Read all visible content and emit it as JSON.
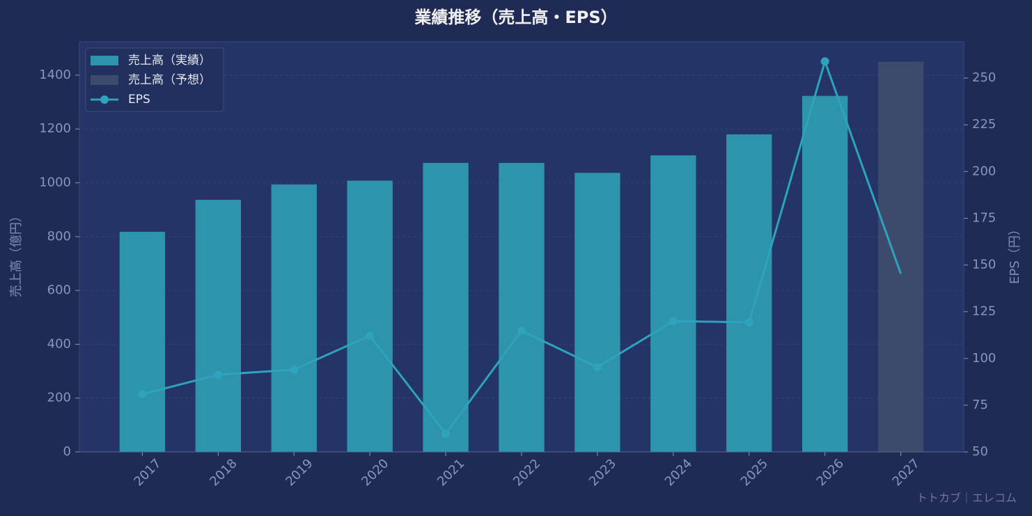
{
  "chart_data": {
    "type": "bar-line",
    "title": "業績推移（売上高・EPS）",
    "categories": [
      "2017",
      "2018",
      "2019",
      "2020",
      "2021",
      "2022",
      "2023",
      "2024",
      "2025",
      "2026",
      "2027"
    ],
    "series": [
      {
        "name": "売上高（実績）",
        "color": "#2e93ad",
        "values": [
          818,
          937,
          994,
          1008,
          1074,
          1074,
          1037,
          1102,
          1180,
          1323,
          null
        ]
      },
      {
        "name": "売上高（予想）",
        "color": "#3d4a6b",
        "values": [
          null,
          null,
          null,
          null,
          null,
          null,
          null,
          null,
          null,
          null,
          1450
        ]
      },
      {
        "name": "EPS",
        "color": "#2ea3bd",
        "axis": "y2",
        "values": [
          80.9,
          91.3,
          94.0,
          112.2,
          59.7,
          114.8,
          95.4,
          120.0,
          119.3,
          258.9,
          145.3
        ]
      }
    ],
    "ylabel": "売上高（億円）",
    "y2label": "EPS（円）",
    "ylim": [
      0,
      1524
    ],
    "yticks": [
      0,
      200,
      400,
      600,
      800,
      1000,
      1200,
      1400
    ],
    "y2lim": [
      50,
      269.4
    ],
    "y2ticks": [
      50,
      75,
      100,
      125,
      150,
      175,
      200,
      225,
      250
    ],
    "grid": true,
    "legend": "upper-left",
    "watermark": "トトカブ｜エレコム"
  }
}
